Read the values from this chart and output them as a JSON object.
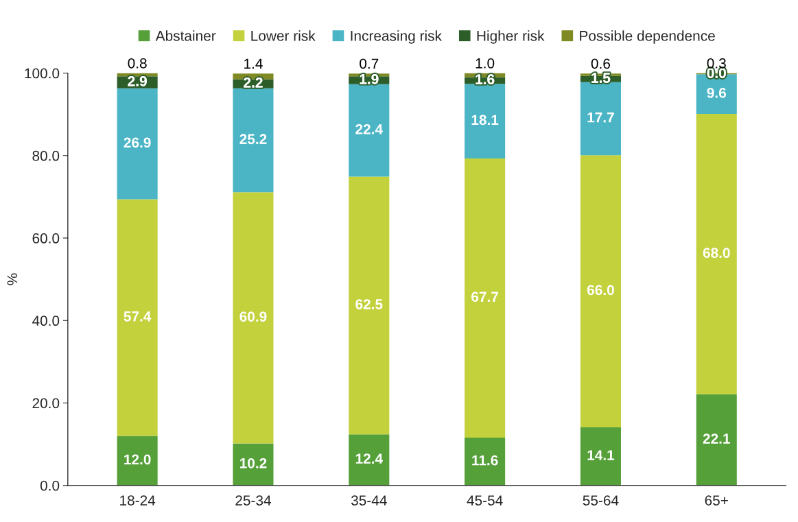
{
  "chart_data": {
    "type": "bar",
    "stacked": true,
    "ylabel": "%",
    "categories": [
      "18-24",
      "25-34",
      "35-44",
      "45-54",
      "55-64",
      "65+"
    ],
    "series": [
      {
        "name": "Abstainer",
        "color": "#56a03a",
        "values": [
          12.0,
          10.2,
          12.4,
          11.6,
          14.1,
          22.1
        ],
        "value_labels": [
          "12.0",
          "10.2",
          "12.4",
          "11.6",
          "14.1",
          "22.1"
        ]
      },
      {
        "name": "Lower risk",
        "color": "#c3d13d",
        "values": [
          57.4,
          60.9,
          62.5,
          67.7,
          66.0,
          68.0
        ],
        "value_labels": [
          "57.4",
          "60.9",
          "62.5",
          "67.7",
          "66.0",
          "68.0"
        ]
      },
      {
        "name": "Increasing risk",
        "color": "#4bb5c6",
        "values": [
          26.9,
          25.2,
          22.4,
          18.1,
          17.7,
          9.6
        ],
        "value_labels": [
          "26.9",
          "25.2",
          "22.4",
          "18.1",
          "17.7",
          "9.6"
        ]
      },
      {
        "name": "Higher risk",
        "color": "#2d5e2a",
        "values": [
          2.9,
          2.2,
          1.9,
          1.6,
          1.5,
          0.0
        ],
        "value_labels": [
          "2.9",
          "2.2",
          "1.9",
          "1.6",
          "1.5",
          "0.0"
        ]
      },
      {
        "name": "Possible dependence",
        "color": "#7f8a25",
        "values": [
          0.8,
          1.4,
          0.7,
          1.0,
          0.6,
          0.3
        ],
        "value_labels": [
          "0.8",
          "1.4",
          "0.7",
          "1.0",
          "0.6",
          "0.3"
        ]
      }
    ],
    "ylim": [
      0,
      100
    ],
    "yticks": [
      {
        "value": 0,
        "label": "0.0"
      },
      {
        "value": 20,
        "label": "20.0"
      },
      {
        "value": 40,
        "label": "40.0"
      },
      {
        "value": 60,
        "label": "60.0"
      },
      {
        "value": 80,
        "label": "80.0"
      },
      {
        "value": 100,
        "label": "100.0"
      }
    ],
    "data_labels": true,
    "legend": "top",
    "grid": false
  }
}
